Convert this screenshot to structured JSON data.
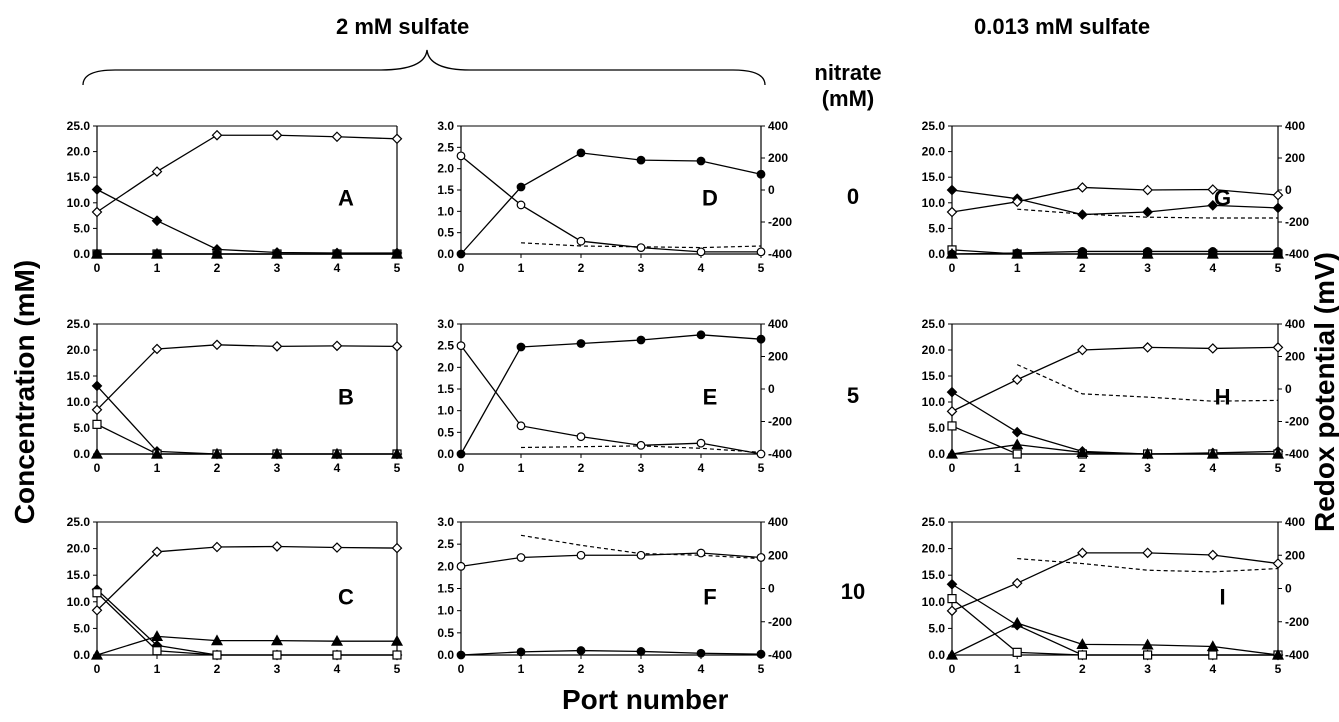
{
  "headers": {
    "left": "2 mM sulfate",
    "right": "0.013 mM sulfate",
    "nitrate_line1": "nitrate",
    "nitrate_line2": "(mM)"
  },
  "row_labels": [
    "0",
    "5",
    "10"
  ],
  "axis_titles": {
    "ylabel_left": "Concentration (mM)",
    "ylabel_right": "Redox potential (mV)",
    "xlabel": "Port number"
  },
  "chart_data": [
    {
      "type": "line",
      "panel_label": "A",
      "x": [
        0,
        1,
        2,
        3,
        4,
        5
      ],
      "ylim": [
        0,
        25
      ],
      "yticks": [
        "0.0",
        "5.0",
        "10.0",
        "15.0",
        "20.0",
        "25.0"
      ],
      "right_axis": false,
      "series": [
        {
          "marker": "open-diamond",
          "values": [
            8.2,
            16.1,
            23.2,
            23.2,
            22.9,
            22.5
          ]
        },
        {
          "marker": "filled-diamond",
          "values": [
            12.6,
            6.5,
            0.9,
            0.3,
            0.2,
            0.2
          ]
        },
        {
          "marker": "open-square",
          "values": [
            0,
            0,
            0,
            0,
            0,
            0
          ]
        },
        {
          "marker": "filled-triangle",
          "values": [
            0,
            0,
            0,
            0,
            0,
            0
          ]
        },
        {
          "marker": "filled-circle",
          "values": [
            0,
            0,
            0,
            0,
            0,
            0
          ]
        }
      ]
    },
    {
      "type": "line",
      "panel_label": "D",
      "x": [
        0,
        1,
        2,
        3,
        4,
        5
      ],
      "ylim": [
        0,
        3
      ],
      "yticks": [
        "0.0",
        "0.5",
        "1.0",
        "1.5",
        "2.0",
        "2.5",
        "3.0"
      ],
      "right_axis": true,
      "y2lim": [
        -400,
        400
      ],
      "y2ticks": [
        "-400",
        "-200",
        "0",
        "200",
        "400"
      ],
      "series": [
        {
          "marker": "open-circle",
          "values": [
            2.3,
            1.15,
            0.3,
            0.15,
            0.05,
            0.05
          ]
        },
        {
          "marker": "filled-circle",
          "values": [
            0,
            1.57,
            2.37,
            2.2,
            2.18,
            1.87
          ]
        }
      ],
      "redox": {
        "x": [
          1,
          2,
          3,
          4,
          5
        ],
        "values": [
          -330,
          -350,
          -355,
          -360,
          -350
        ]
      }
    },
    {
      "type": "line",
      "panel_label": "G",
      "x": [
        0,
        1,
        2,
        3,
        4,
        5
      ],
      "ylim": [
        0,
        25
      ],
      "yticks": [
        "0.0",
        "5.0",
        "10.0",
        "15.0",
        "20.0",
        "25.0"
      ],
      "right_axis": true,
      "y2lim": [
        -400,
        400
      ],
      "y2ticks": [
        "-400",
        "-200",
        "0",
        "200",
        "400"
      ],
      "series": [
        {
          "marker": "filled-diamond",
          "values": [
            12.5,
            10.8,
            7.7,
            8.2,
            9.5,
            9.0
          ]
        },
        {
          "marker": "open-diamond",
          "values": [
            8.2,
            10.2,
            13.0,
            12.5,
            12.6,
            11.5
          ]
        },
        {
          "marker": "open-square",
          "values": [
            0.8,
            0,
            0,
            0,
            0,
            0
          ]
        },
        {
          "marker": "filled-triangle",
          "values": [
            0,
            0,
            0,
            0,
            0,
            0
          ]
        },
        {
          "marker": "filled-circle",
          "values": [
            0,
            0.2,
            0.5,
            0.5,
            0.5,
            0.5
          ]
        }
      ],
      "redox": {
        "x": [
          1,
          2,
          3,
          4,
          5
        ],
        "values": [
          -120,
          -150,
          -170,
          -175,
          -175
        ]
      }
    },
    {
      "type": "line",
      "panel_label": "B",
      "x": [
        0,
        1,
        2,
        3,
        4,
        5
      ],
      "ylim": [
        0,
        25
      ],
      "yticks": [
        "0.0",
        "5.0",
        "10.0",
        "15.0",
        "20.0",
        "25.0"
      ],
      "right_axis": false,
      "series": [
        {
          "marker": "open-diamond",
          "values": [
            8.5,
            20.2,
            21.0,
            20.7,
            20.8,
            20.7
          ]
        },
        {
          "marker": "filled-diamond",
          "values": [
            13.1,
            0.5,
            0,
            0,
            0,
            0
          ]
        },
        {
          "marker": "open-square",
          "values": [
            5.7,
            0,
            0,
            0,
            0,
            0
          ]
        },
        {
          "marker": "filled-triangle",
          "values": [
            0,
            0,
            0,
            0,
            0,
            0
          ]
        }
      ]
    },
    {
      "type": "line",
      "panel_label": "E",
      "x": [
        0,
        1,
        2,
        3,
        4,
        5
      ],
      "ylim": [
        0,
        3
      ],
      "yticks": [
        "0.0",
        "0.5",
        "1.0",
        "1.5",
        "2.0",
        "2.5",
        "3.0"
      ],
      "right_axis": true,
      "y2lim": [
        -400,
        400
      ],
      "y2ticks": [
        "-400",
        "-200",
        "0",
        "200",
        "400"
      ],
      "series": [
        {
          "marker": "open-circle",
          "values": [
            2.5,
            0.65,
            0.4,
            0.2,
            0.25,
            0.0
          ]
        },
        {
          "marker": "filled-circle",
          "values": [
            0,
            2.47,
            2.55,
            2.63,
            2.75,
            2.65
          ]
        }
      ],
      "redox": {
        "x": [
          1,
          2,
          3,
          4,
          5
        ],
        "values": [
          -360,
          -355,
          -350,
          -365,
          -390
        ]
      }
    },
    {
      "type": "line",
      "panel_label": "H",
      "x": [
        0,
        1,
        2,
        3,
        4,
        5
      ],
      "ylim": [
        0,
        25
      ],
      "yticks": [
        "0.0",
        "5.0",
        "10.0",
        "15.0",
        "20.0",
        "25.0"
      ],
      "right_axis": true,
      "y2lim": [
        -400,
        400
      ],
      "y2ticks": [
        "-400",
        "-200",
        "0",
        "200",
        "400"
      ],
      "series": [
        {
          "marker": "open-diamond",
          "values": [
            8.2,
            14.3,
            20.0,
            20.5,
            20.3,
            20.5
          ]
        },
        {
          "marker": "filled-diamond",
          "values": [
            11.9,
            4.2,
            0.5,
            0,
            0.2,
            0.5
          ]
        },
        {
          "marker": "open-square",
          "values": [
            5.4,
            0,
            0,
            0,
            0,
            0
          ]
        },
        {
          "marker": "filled-triangle",
          "values": [
            0,
            1.8,
            0.3,
            0,
            0,
            0
          ]
        }
      ],
      "redox": {
        "x": [
          1,
          2,
          3,
          4,
          5
        ],
        "values": [
          150,
          -30,
          -50,
          -75,
          -70
        ]
      }
    },
    {
      "type": "line",
      "panel_label": "C",
      "x": [
        0,
        1,
        2,
        3,
        4,
        5
      ],
      "ylim": [
        0,
        25
      ],
      "yticks": [
        "0.0",
        "5.0",
        "10.0",
        "15.0",
        "20.0",
        "25.0"
      ],
      "right_axis": false,
      "series": [
        {
          "marker": "open-diamond",
          "values": [
            8.4,
            19.4,
            20.3,
            20.4,
            20.2,
            20.1
          ]
        },
        {
          "marker": "filled-diamond",
          "values": [
            12.3,
            1.8,
            0,
            0,
            0,
            0
          ]
        },
        {
          "marker": "open-square",
          "values": [
            11.7,
            0.8,
            0,
            0,
            0,
            0
          ]
        },
        {
          "marker": "filled-triangle",
          "values": [
            0,
            3.5,
            2.7,
            2.7,
            2.6,
            2.6
          ]
        }
      ]
    },
    {
      "type": "line",
      "panel_label": "F",
      "x": [
        0,
        1,
        2,
        3,
        4,
        5
      ],
      "ylim": [
        0,
        3
      ],
      "yticks": [
        "0.0",
        "0.5",
        "1.0",
        "1.5",
        "2.0",
        "2.5",
        "3.0"
      ],
      "right_axis": true,
      "y2lim": [
        -400,
        400
      ],
      "y2ticks": [
        "-400",
        "-200",
        "0",
        "200",
        "400"
      ],
      "series": [
        {
          "marker": "open-circle",
          "values": [
            2.0,
            2.2,
            2.25,
            2.25,
            2.3,
            2.2
          ]
        },
        {
          "marker": "filled-circle",
          "values": [
            0,
            0.07,
            0.1,
            0.08,
            0.04,
            0.02
          ]
        }
      ],
      "redox": {
        "x": [
          1,
          2,
          3,
          4,
          5
        ],
        "values": [
          320,
          260,
          210,
          200,
          180
        ]
      }
    },
    {
      "type": "line",
      "panel_label": "I",
      "x": [
        0,
        1,
        2,
        3,
        4,
        5
      ],
      "ylim": [
        0,
        25
      ],
      "yticks": [
        "0.0",
        "5.0",
        "10.0",
        "15.0",
        "20.0",
        "25.0"
      ],
      "right_axis": true,
      "y2lim": [
        -400,
        400
      ],
      "y2ticks": [
        "-400",
        "-200",
        "0",
        "200",
        "400"
      ],
      "series": [
        {
          "marker": "open-diamond",
          "values": [
            8.3,
            13.5,
            19.2,
            19.2,
            18.8,
            17.2
          ]
        },
        {
          "marker": "filled-diamond",
          "values": [
            13.3,
            5.6,
            0,
            0,
            0,
            0
          ]
        },
        {
          "marker": "open-square",
          "values": [
            10.6,
            0.5,
            0,
            0,
            0,
            0
          ]
        },
        {
          "marker": "filled-triangle",
          "values": [
            0,
            6.0,
            2.0,
            1.9,
            1.6,
            0
          ]
        }
      ],
      "redox": {
        "x": [
          1,
          2,
          3,
          4,
          5
        ],
        "values": [
          180,
          150,
          110,
          100,
          120
        ]
      }
    }
  ]
}
